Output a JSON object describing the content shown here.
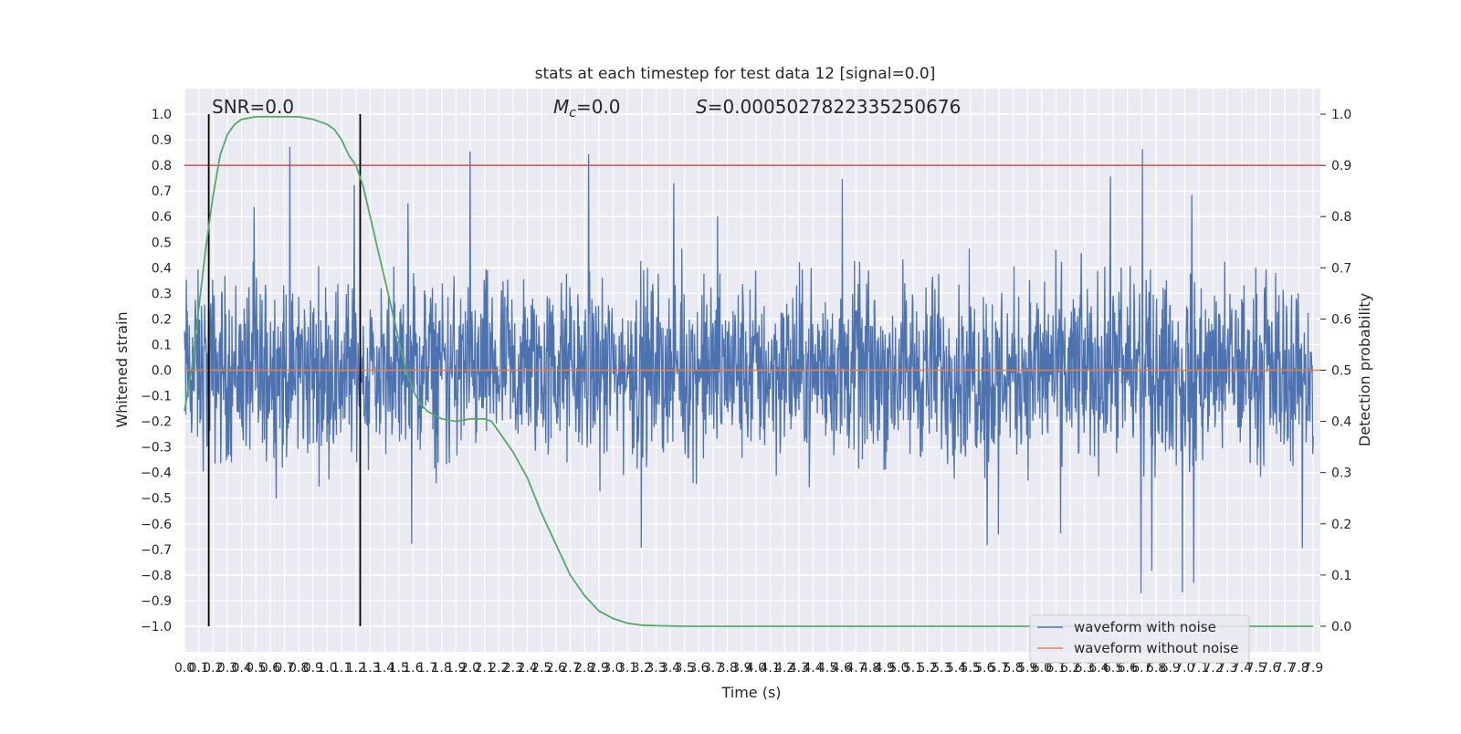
{
  "chart_data": {
    "type": "line",
    "title": "stats at each timestep for test data 12 [signal=0.0]",
    "xlabel": "Time (s)",
    "ylabel_left": "Whitened strain",
    "ylabel_right": "Detection probability",
    "xlim": [
      0.0,
      7.95
    ],
    "ylim_left": [
      -1.1,
      1.1
    ],
    "ylim_right": [
      -0.05,
      1.05
    ],
    "grid": true,
    "legend_position": "bottom-right",
    "x_ticks": [
      "0.0",
      "0.1",
      "0.2",
      "0.3",
      "0.4",
      "0.5",
      "0.6",
      "0.7",
      "0.8",
      "0.9",
      "1.0",
      "1.1",
      "1.2",
      "1.3",
      "1.4",
      "1.5",
      "1.6",
      "1.7",
      "1.8",
      "1.9",
      "2.0",
      "2.1",
      "2.2",
      "2.3",
      "2.4",
      "2.5",
      "2.6",
      "2.7",
      "2.8",
      "2.9",
      "3.0",
      "3.1",
      "3.2",
      "3.3",
      "3.4",
      "3.5",
      "3.6",
      "3.7",
      "3.8",
      "3.9",
      "4.0",
      "4.1",
      "4.2",
      "4.3",
      "4.4",
      "4.5",
      "4.6",
      "4.7",
      "4.8",
      "4.9",
      "5.0",
      "5.1",
      "5.2",
      "5.3",
      "5.4",
      "5.5",
      "5.6",
      "5.7",
      "5.8",
      "5.9",
      "6.0",
      "6.1",
      "6.2",
      "6.3",
      "6.4",
      "6.5",
      "6.6",
      "6.7",
      "6.8",
      "6.9",
      "7.0",
      "7.1",
      "7.2",
      "7.3",
      "7.4",
      "7.5",
      "7.6",
      "7.7",
      "7.8",
      "7.9"
    ],
    "y_ticks_left": [
      "1.0",
      "0.9",
      "0.8",
      "0.7",
      "0.6",
      "0.5",
      "0.4",
      "0.3",
      "0.2",
      "0.1",
      "0.0",
      "−0.1",
      "−0.2",
      "−0.3",
      "−0.4",
      "−0.5",
      "−0.6",
      "−0.7",
      "−0.8",
      "−0.9",
      "−1.0"
    ],
    "y_ticks_right": [
      "1.0",
      "0.9",
      "0.8",
      "0.7",
      "0.6",
      "0.5",
      "0.4",
      "0.3",
      "0.2",
      "0.1",
      "0.0"
    ],
    "annotations": {
      "snr": "SNR=0.0",
      "mc_symbol": "M",
      "mc_sub": "c",
      "mc_value": "=0.0",
      "s_symbol": "S",
      "s_value": "=0.0005027822335250676"
    },
    "threshold": 0.9,
    "vertical_lines": [
      0.17,
      1.23
    ],
    "noise_envelope": {
      "min": -1.0,
      "max": 0.97,
      "typical_abs": 0.4
    },
    "series": [
      {
        "name": "waveform with noise",
        "axis": "left",
        "color": "#4c72b0",
        "note_values": "dense noise samples spanning approx -1.0 to 0.97"
      },
      {
        "name": "waveform without noise",
        "axis": "left",
        "color": "#dd8452",
        "x": [
          0.0,
          7.95
        ],
        "y": [
          0.0,
          0.0
        ]
      },
      {
        "name": "",
        "axis": "right",
        "color": "#55a868",
        "x": [
          0.0,
          0.05,
          0.1,
          0.15,
          0.2,
          0.25,
          0.3,
          0.35,
          0.4,
          0.5,
          0.6,
          0.7,
          0.8,
          0.9,
          1.0,
          1.05,
          1.1,
          1.15,
          1.2,
          1.25,
          1.3,
          1.35,
          1.4,
          1.45,
          1.5,
          1.55,
          1.6,
          1.65,
          1.7,
          1.8,
          1.9,
          2.0,
          2.1,
          2.15,
          2.2,
          2.3,
          2.4,
          2.5,
          2.6,
          2.7,
          2.8,
          2.9,
          3.0,
          3.1,
          3.2,
          3.3,
          3.5,
          4.0,
          5.0,
          6.0,
          7.0,
          7.9
        ],
        "y": [
          0.42,
          0.5,
          0.62,
          0.74,
          0.84,
          0.92,
          0.96,
          0.98,
          0.99,
          0.995,
          0.995,
          0.995,
          0.995,
          0.99,
          0.98,
          0.97,
          0.95,
          0.92,
          0.9,
          0.86,
          0.8,
          0.74,
          0.68,
          0.62,
          0.56,
          0.5,
          0.46,
          0.435,
          0.42,
          0.405,
          0.4,
          0.405,
          0.405,
          0.4,
          0.38,
          0.34,
          0.29,
          0.22,
          0.16,
          0.1,
          0.06,
          0.03,
          0.015,
          0.006,
          0.002,
          0.001,
          0.0,
          0.0,
          0.0,
          0.0,
          0.0,
          0.0
        ]
      }
    ],
    "legend": [
      "waveform with noise",
      "waveform without noise"
    ]
  }
}
